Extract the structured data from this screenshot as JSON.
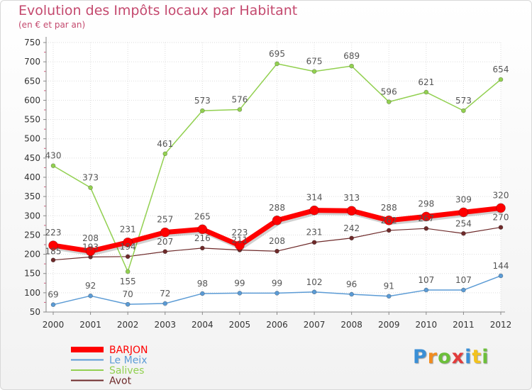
{
  "chart_data": {
    "type": "line",
    "title": "Evolution des Impôts locaux par Habitant",
    "subtitle": "(en € et par an)",
    "xlabel": "",
    "ylabel": "",
    "ylim": [
      50,
      750
    ],
    "yticks": [
      50,
      100,
      150,
      200,
      250,
      300,
      350,
      400,
      450,
      500,
      550,
      600,
      650,
      700,
      750
    ],
    "x": [
      "2000",
      "2001",
      "2002",
      "2003",
      "2004",
      "2005",
      "2006",
      "2007",
      "2008",
      "2009",
      "2010",
      "2011",
      "2012"
    ],
    "grid": true,
    "legend_position": "bottom-left",
    "series": [
      {
        "name": "Avot",
        "color": "#6e2a2a",
        "values": [
          185,
          193,
          194,
          207,
          216,
          211,
          208,
          231,
          242,
          262,
          267,
          254,
          270
        ]
      },
      {
        "name": "Le Meix",
        "color": "#5b9bd5",
        "values": [
          69,
          92,
          70,
          72,
          98,
          99,
          99,
          102,
          96,
          91,
          107,
          107,
          144
        ]
      },
      {
        "name": "Salives",
        "color": "#92d050",
        "values": [
          430,
          373,
          155,
          461,
          573,
          576,
          695,
          675,
          689,
          596,
          621,
          573,
          654
        ]
      },
      {
        "name": "BARJON",
        "color": "#ff0000",
        "values": [
          223,
          208,
          231,
          257,
          265,
          223,
          288,
          314,
          313,
          288,
          298,
          309,
          320
        ]
      }
    ],
    "legend": [
      "BARJON",
      "Le Meix",
      "Salives",
      "Avot"
    ]
  },
  "logo": {
    "letters": [
      "P",
      "r",
      "o",
      "x",
      "i",
      "t",
      "i"
    ],
    "colors": [
      "#3a8fd6",
      "#f28c1e",
      "#6cbf3a",
      "#e23c3c",
      "#3a8fd6",
      "#f2c21e",
      "#6cbf3a"
    ]
  }
}
